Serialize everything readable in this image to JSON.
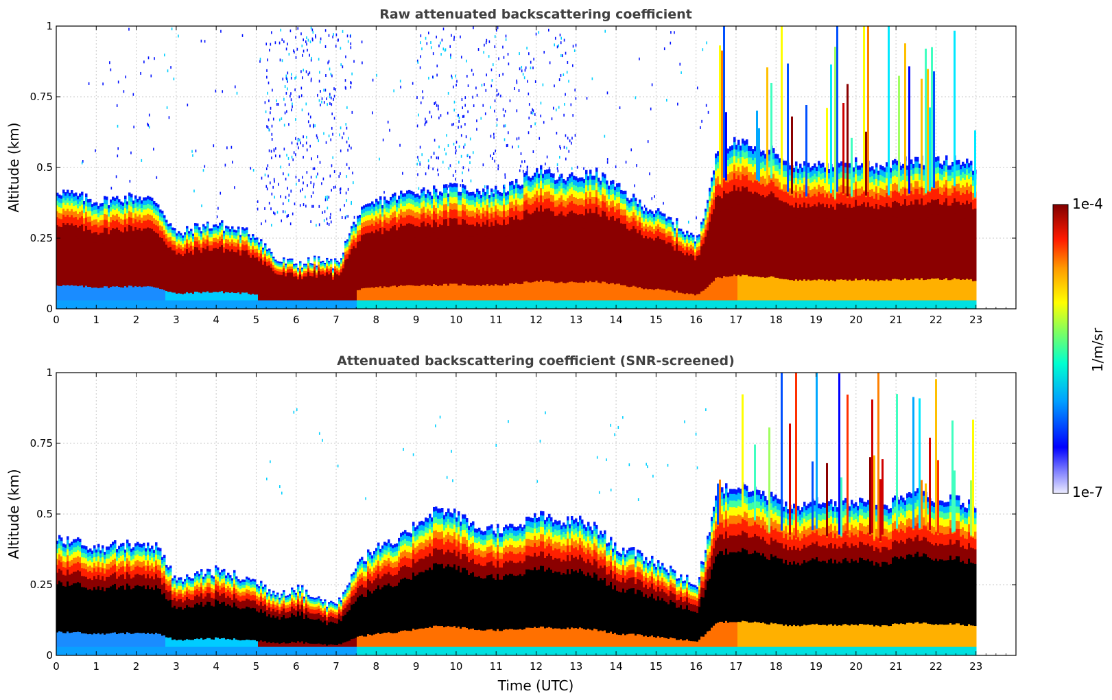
{
  "chart_data": [
    {
      "type": "heatmap",
      "title": "Raw attenuated backscattering coefficient",
      "xlabel": "",
      "ylabel": "Altitude (km)",
      "xlim": [
        0,
        24
      ],
      "ylim": [
        0,
        1
      ],
      "x_ticks": [
        "0",
        "1",
        "2",
        "3",
        "4",
        "5",
        "6",
        "7",
        "8",
        "9",
        "10",
        "11",
        "12",
        "13",
        "14",
        "15",
        "16",
        "17",
        "18",
        "19",
        "20",
        "21",
        "22",
        "23"
      ],
      "y_ticks": [
        "0",
        "0.25",
        "0.5",
        "0.75",
        "1"
      ],
      "data_end_hour": 23,
      "grid": true,
      "screened": false,
      "layer_top_km": {
        "x": [
          0,
          0.5,
          1,
          1.5,
          2,
          2.5,
          3,
          3.5,
          4,
          4.5,
          5,
          5.5,
          6,
          6.5,
          7,
          7.5,
          8,
          8.5,
          9,
          9.5,
          10,
          10.5,
          11,
          11.5,
          12,
          12.5,
          13,
          13.5,
          14,
          14.5,
          15,
          15.5,
          16,
          16.5,
          17,
          17.5,
          18,
          18.5,
          19,
          19.5,
          20,
          20.5,
          21,
          21.5,
          22,
          22.5,
          23
        ],
        "y": [
          0.42,
          0.4,
          0.38,
          0.39,
          0.4,
          0.38,
          0.26,
          0.29,
          0.3,
          0.28,
          0.26,
          0.17,
          0.16,
          0.17,
          0.16,
          0.33,
          0.38,
          0.4,
          0.42,
          0.42,
          0.43,
          0.42,
          0.42,
          0.44,
          0.5,
          0.46,
          0.47,
          0.48,
          0.43,
          0.38,
          0.34,
          0.3,
          0.24,
          0.55,
          0.6,
          0.58,
          0.55,
          0.5,
          0.52,
          0.5,
          0.52,
          0.5,
          0.52,
          0.53,
          0.52,
          0.53,
          0.5
        ]
      }
    },
    {
      "type": "heatmap",
      "title": "Attenuated backscattering coefficient (SNR-screened)",
      "xlabel": "Time (UTC)",
      "ylabel": "Altitude (km)",
      "xlim": [
        0,
        24
      ],
      "ylim": [
        0,
        1
      ],
      "x_ticks": [
        "0",
        "1",
        "2",
        "3",
        "4",
        "5",
        "6",
        "7",
        "8",
        "9",
        "10",
        "11",
        "12",
        "13",
        "14",
        "15",
        "16",
        "17",
        "18",
        "19",
        "20",
        "21",
        "22",
        "23"
      ],
      "y_ticks": [
        "0",
        "0.25",
        "0.5",
        "0.75",
        "1"
      ],
      "data_end_hour": 23,
      "grid": true,
      "screened": true,
      "layer_top_km": {
        "x": [
          0,
          0.5,
          1,
          1.5,
          2,
          2.5,
          3,
          3.5,
          4,
          4.5,
          5,
          5.5,
          6,
          6.5,
          7,
          7.5,
          8,
          8.5,
          9,
          9.5,
          10,
          10.5,
          11,
          11.5,
          12,
          12.5,
          13,
          13.5,
          14,
          14.5,
          15,
          15.5,
          16,
          16.5,
          17,
          17.5,
          18,
          18.5,
          19,
          19.5,
          20,
          20.5,
          21,
          21.5,
          22,
          22.5,
          23
        ],
        "y": [
          0.42,
          0.4,
          0.38,
          0.39,
          0.4,
          0.38,
          0.26,
          0.29,
          0.3,
          0.28,
          0.26,
          0.22,
          0.24,
          0.2,
          0.18,
          0.33,
          0.38,
          0.4,
          0.47,
          0.52,
          0.5,
          0.45,
          0.45,
          0.45,
          0.5,
          0.47,
          0.48,
          0.45,
          0.38,
          0.36,
          0.33,
          0.29,
          0.24,
          0.58,
          0.6,
          0.58,
          0.55,
          0.52,
          0.55,
          0.53,
          0.55,
          0.52,
          0.55,
          0.58,
          0.55,
          0.55,
          0.52
        ]
      }
    }
  ],
  "colorbar": {
    "label": "1/m/sr",
    "max_label": "1e-4",
    "min_label": "1e-7",
    "colormap": "jet",
    "colors": [
      "#e6e6fa",
      "#0000ff",
      "#00c8ff",
      "#00ffb0",
      "#ffff00",
      "#ff9a00",
      "#ff0000",
      "#800000"
    ]
  }
}
